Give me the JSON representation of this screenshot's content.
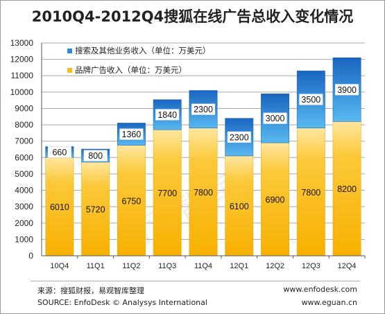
{
  "chart_data": {
    "type": "bar",
    "stacked": true,
    "title": "2010Q4-2012Q4搜狐在线广告总收入变化情况",
    "categories": [
      "10Q4",
      "11Q1",
      "11Q2",
      "11Q3",
      "11Q4",
      "12Q1",
      "12Q2",
      "12Q3",
      "12Q4"
    ],
    "series": [
      {
        "name": "品牌广告收入（单位：万美元）",
        "values": [
          6010,
          5720,
          6750,
          7700,
          7800,
          6100,
          6900,
          7800,
          8200
        ]
      },
      {
        "name": "搜索及其他业务收入（单位：万美元）",
        "values": [
          660,
          800,
          1360,
          1840,
          2300,
          2300,
          3000,
          3500,
          3900
        ]
      }
    ],
    "ylim": [
      0,
      13000
    ],
    "yticks": [
      "0",
      "1000",
      "2000",
      "3000",
      "4000",
      "5000",
      "6000",
      "7000",
      "8000",
      "9000",
      "10000",
      "11000",
      "12000",
      "13000"
    ],
    "grid": true,
    "legend_position": "top-left",
    "colors": {
      "brand": "#fbbd15",
      "search": "#2f8ad9"
    }
  },
  "watermark": "易观智库",
  "footer": {
    "source_cn": "来源：搜狐财报，易观智库整理",
    "source_en": "SOURCE:  EnfoDesk © Analysys International",
    "url1": "www.enfodesk.com",
    "url2": "www.eguan.cn"
  }
}
